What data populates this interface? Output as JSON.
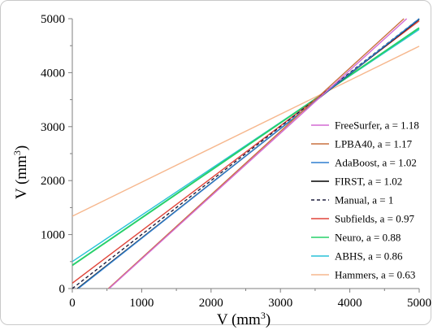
{
  "chart_data": {
    "type": "line",
    "title": "",
    "xlabel": {
      "prefix": "V (mm",
      "sup": "3",
      "suffix": ")"
    },
    "ylabel": {
      "prefix": "V (mm",
      "sup": "3",
      "suffix": ")"
    },
    "xlim": [
      0,
      5000
    ],
    "ylim": [
      0,
      5000
    ],
    "xticks": [
      0,
      1000,
      2000,
      3000,
      4000,
      5000
    ],
    "yticks": [
      0,
      1000,
      2000,
      3000,
      4000,
      5000
    ],
    "grid": false,
    "legend_position": "lower-right",
    "series": [
      {
        "name": "FreeSurfer, a = 1.18",
        "color": "#d36ad3",
        "dash": false,
        "x": [
          530,
          4820
        ],
        "y": [
          0,
          5000
        ]
      },
      {
        "name": "LPBA40, a = 1.17",
        "color": "#c8703e",
        "dash": false,
        "x": [
          520,
          4780
        ],
        "y": [
          0,
          5000
        ]
      },
      {
        "name": "AdaBoost, a = 1.02",
        "color": "#2f7fd0",
        "dash": false,
        "x": [
          85,
          5000
        ],
        "y": [
          0,
          5000
        ]
      },
      {
        "name": "FIRST, a = 1.02",
        "color": "#000000",
        "dash": false,
        "x": [
          75,
          5000
        ],
        "y": [
          0,
          4990
        ]
      },
      {
        "name": "Manual, a = 1",
        "color": "#1f1f3f",
        "dash": true,
        "x": [
          0,
          5000
        ],
        "y": [
          0,
          5000
        ]
      },
      {
        "name": "Subfields, a = 0.97",
        "color": "#e0453a",
        "dash": false,
        "x": [
          0,
          5000
        ],
        "y": [
          100,
          4960
        ]
      },
      {
        "name": "Neuro, a = 0.88",
        "color": "#27d06a",
        "dash": false,
        "x": [
          0,
          5000
        ],
        "y": [
          430,
          4830
        ]
      },
      {
        "name": "ABHS, a = 0.86",
        "color": "#28c2d8",
        "dash": false,
        "x": [
          0,
          5000
        ],
        "y": [
          500,
          4800
        ]
      },
      {
        "name": "Hammers, a = 0.63",
        "color": "#f6b78d",
        "dash": false,
        "x": [
          0,
          5000
        ],
        "y": [
          1340,
          4490
        ]
      }
    ]
  }
}
